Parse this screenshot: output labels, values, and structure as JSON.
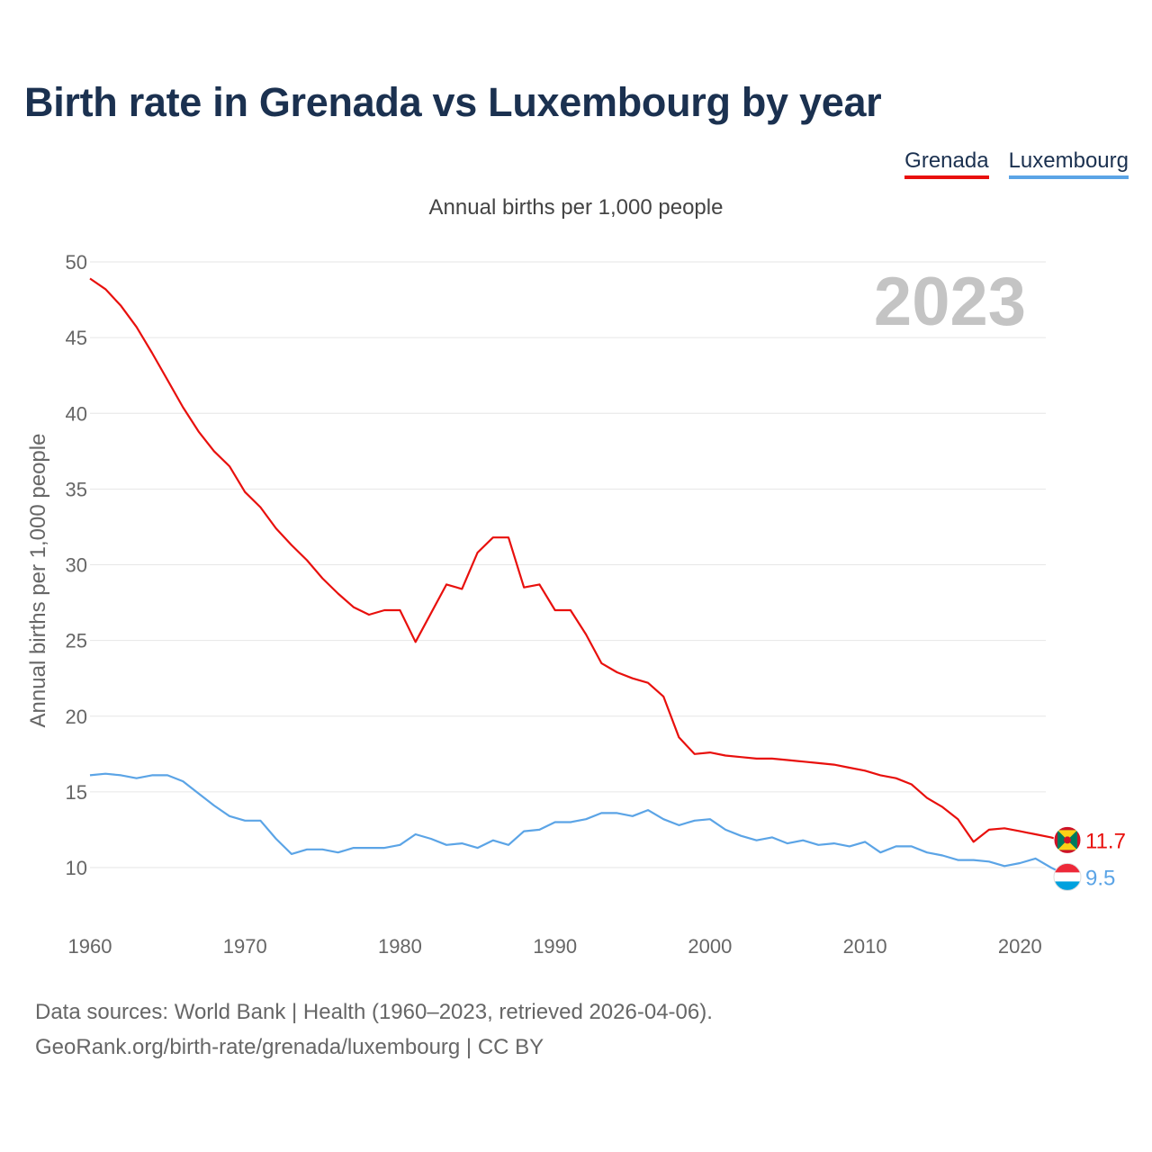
{
  "title": "Birth rate in Grenada vs Luxembourg by year",
  "subtitle": "Annual births per 1,000 people",
  "legend": [
    {
      "name": "Grenada",
      "color": "#e8100d"
    },
    {
      "name": "Luxembourg",
      "color": "#5ba4e6"
    }
  ],
  "year_watermark": "2023",
  "footer": {
    "line1": "Data sources: World Bank | Health (1960–2023, retrieved 2026-04-06).",
    "line2": "GeoRank.org/birth-rate/grenada/luxembourg | CC BY"
  },
  "chart_data": {
    "type": "line",
    "title": "Birth rate in Grenada vs Luxembourg by year",
    "xlabel": "",
    "ylabel": "Annual births per 1,000 people",
    "xlim": [
      1960,
      2023
    ],
    "ylim": [
      10,
      50
    ],
    "x_ticks": [
      1960,
      1970,
      1980,
      1990,
      2000,
      2010,
      2020
    ],
    "y_ticks": [
      10,
      15,
      20,
      25,
      30,
      35,
      40,
      45,
      50
    ],
    "grid": true,
    "legend_position": "top-right",
    "x": [
      1960,
      1961,
      1962,
      1963,
      1964,
      1965,
      1966,
      1967,
      1968,
      1969,
      1970,
      1971,
      1972,
      1973,
      1974,
      1975,
      1976,
      1977,
      1978,
      1979,
      1980,
      1981,
      1982,
      1983,
      1984,
      1985,
      1986,
      1987,
      1988,
      1989,
      1990,
      1991,
      1992,
      1993,
      1994,
      1995,
      1996,
      1997,
      1998,
      1999,
      2000,
      2001,
      2002,
      2003,
      2004,
      2005,
      2006,
      2007,
      2008,
      2009,
      2010,
      2011,
      2012,
      2013,
      2014,
      2015,
      2016,
      2017,
      2018,
      2019,
      2020,
      2021,
      2022,
      2023
    ],
    "series": [
      {
        "name": "Grenada",
        "color": "#e8100d",
        "end_label": "11.7",
        "values": [
          48.9,
          48.2,
          47.1,
          45.7,
          44.0,
          42.2,
          40.4,
          38.8,
          37.5,
          36.5,
          34.8,
          33.8,
          32.4,
          31.3,
          30.3,
          29.1,
          28.1,
          27.2,
          26.7,
          27.0,
          27.0,
          24.9,
          26.8,
          28.7,
          28.4,
          30.8,
          31.8,
          31.8,
          28.5,
          28.7,
          27.0,
          27.0,
          25.4,
          23.5,
          22.9,
          22.5,
          22.2,
          21.3,
          18.6,
          17.5,
          17.6,
          17.4,
          17.3,
          17.2,
          17.2,
          17.1,
          17.0,
          16.9,
          16.8,
          16.6,
          16.4,
          16.1,
          15.9,
          15.5,
          14.6,
          14.0,
          13.2,
          11.7,
          12.5,
          12.6,
          12.4,
          12.2,
          12.0,
          11.7
        ]
      },
      {
        "name": "Luxembourg",
        "color": "#5ba4e6",
        "end_label": "9.5",
        "values": [
          16.1,
          16.2,
          16.1,
          15.9,
          16.1,
          16.1,
          15.7,
          14.9,
          14.1,
          13.4,
          13.1,
          13.1,
          11.9,
          10.9,
          11.2,
          11.2,
          11.0,
          11.3,
          11.3,
          11.3,
          11.5,
          12.2,
          11.9,
          11.5,
          11.6,
          11.3,
          11.8,
          11.5,
          12.4,
          12.5,
          13.0,
          13.0,
          13.2,
          13.6,
          13.6,
          13.4,
          13.8,
          13.2,
          12.8,
          13.1,
          13.2,
          12.5,
          12.1,
          11.8,
          12.0,
          11.6,
          11.8,
          11.5,
          11.6,
          11.4,
          11.7,
          11.0,
          11.4,
          11.4,
          11.0,
          10.8,
          10.5,
          10.5,
          10.4,
          10.1,
          10.3,
          10.6,
          10.0,
          9.5
        ]
      }
    ]
  }
}
